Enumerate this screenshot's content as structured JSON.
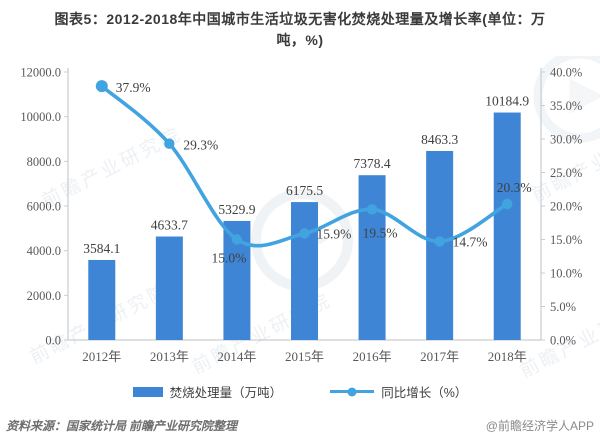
{
  "title": {
    "lines": [
      "图表5：2012-2018年中国城市生活垃圾无害化焚烧处理量及增长率(单位：万",
      "吨，%)"
    ]
  },
  "chart_data": {
    "type": "bar",
    "combo": "bar+line dual-axis",
    "title": "图表5：2012-2018年中国城市生活垃圾无害化焚烧处理量及增长率(单位：万吨，%)",
    "categories": [
      "2012年",
      "2013年",
      "2014年",
      "2015年",
      "2016年",
      "2017年",
      "2018年"
    ],
    "series": [
      {
        "name": "焚烧处理量（万吨）",
        "type": "bar",
        "axis": "left",
        "color": "#3E86D5",
        "values": [
          3584.1,
          4633.7,
          5329.9,
          6175.5,
          7378.4,
          8463.3,
          10184.9
        ],
        "labels": [
          "3584.1",
          "4633.7",
          "5329.9",
          "6175.5",
          "7378.4",
          "8463.3",
          "10184.9"
        ]
      },
      {
        "name": "同比增长（%）",
        "type": "line",
        "axis": "right",
        "color": "#41A3DF",
        "values": [
          37.9,
          29.3,
          15.0,
          15.9,
          19.5,
          14.7,
          20.3
        ],
        "labels": [
          "37.9%",
          "29.3%",
          "15.0%",
          "15.9%",
          "19.5%",
          "14.7%",
          "20.3%"
        ]
      }
    ],
    "left_axis": {
      "min": 0,
      "max": 12000,
      "step": 2000,
      "tick_labels": [
        "0.0",
        "2000.0",
        "4000.0",
        "6000.0",
        "8000.0",
        "10000.0",
        "12000.0"
      ]
    },
    "right_axis": {
      "min": 0,
      "max": 40,
      "step": 5,
      "tick_labels": [
        "0.0%",
        "5.0%",
        "10.0%",
        "15.0%",
        "20.0%",
        "25.0%",
        "30.0%",
        "35.0%",
        "40.0%"
      ]
    },
    "grid": false,
    "legend_position": "bottom",
    "text_color": "#3f3f3f",
    "axis_text_color": "#595959",
    "axis_line_color": "#c9cdd1"
  },
  "watermark_text": "前瞻产业研究院",
  "footer": {
    "source": "资料来源：国家统计局 前瞻产业研究院整理",
    "credit": "@前瞻经济学人APP"
  }
}
